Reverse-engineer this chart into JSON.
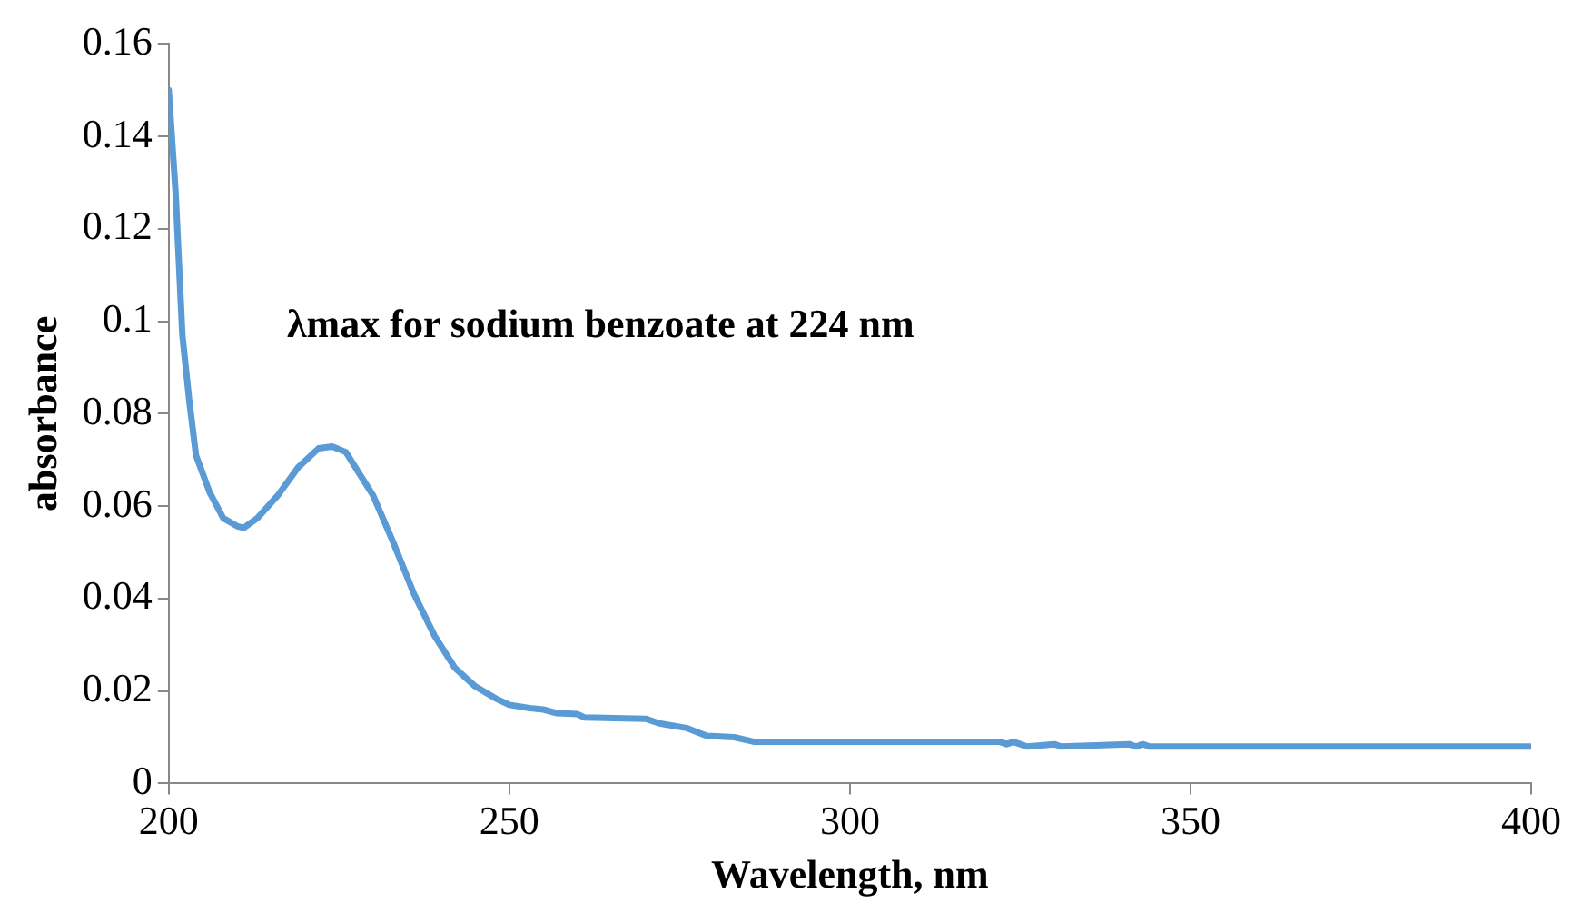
{
  "chart_data": {
    "type": "line",
    "xlabel": "Wavelength, nm",
    "ylabel": "absorbance",
    "annotations": [
      "λmax for sodium benzoate at 224 nm"
    ],
    "x": [
      200,
      201,
      202,
      203,
      204,
      206,
      208,
      210,
      211,
      213,
      216,
      219,
      222,
      224,
      226,
      228,
      230,
      233,
      236,
      239,
      242,
      245,
      248,
      250,
      253,
      255,
      257,
      260,
      261,
      270,
      272,
      276,
      279,
      283,
      286,
      322,
      323,
      324,
      325,
      326,
      330,
      331,
      341,
      342,
      343,
      344,
      400
    ],
    "series": [
      {
        "color": "#5b9bd5",
        "values": [
          0.15,
          0.128,
          0.097,
          0.083,
          0.071,
          0.063,
          0.0574,
          0.0557,
          0.0553,
          0.0574,
          0.0623,
          0.0684,
          0.0725,
          0.0729,
          0.0717,
          0.067,
          0.0623,
          0.052,
          0.041,
          0.032,
          0.025,
          0.021,
          0.0184,
          0.017,
          0.0163,
          0.016,
          0.0152,
          0.015,
          0.0143,
          0.014,
          0.013,
          0.012,
          0.0103,
          0.01,
          0.009,
          0.009,
          0.0085,
          0.009,
          0.0085,
          0.008,
          0.0085,
          0.008,
          0.0085,
          0.008,
          0.0085,
          0.008,
          0.008
        ]
      }
    ],
    "xlim": [
      200,
      400
    ],
    "xticks": [
      200,
      250,
      300,
      350,
      400
    ],
    "ylim": [
      0,
      0.16
    ],
    "yticks": [
      0,
      0.02,
      0.04,
      0.06,
      0.08,
      0.1,
      0.12,
      0.14,
      0.16
    ],
    "grid": false,
    "legend": false,
    "marker": "none",
    "line_style": "solid"
  }
}
